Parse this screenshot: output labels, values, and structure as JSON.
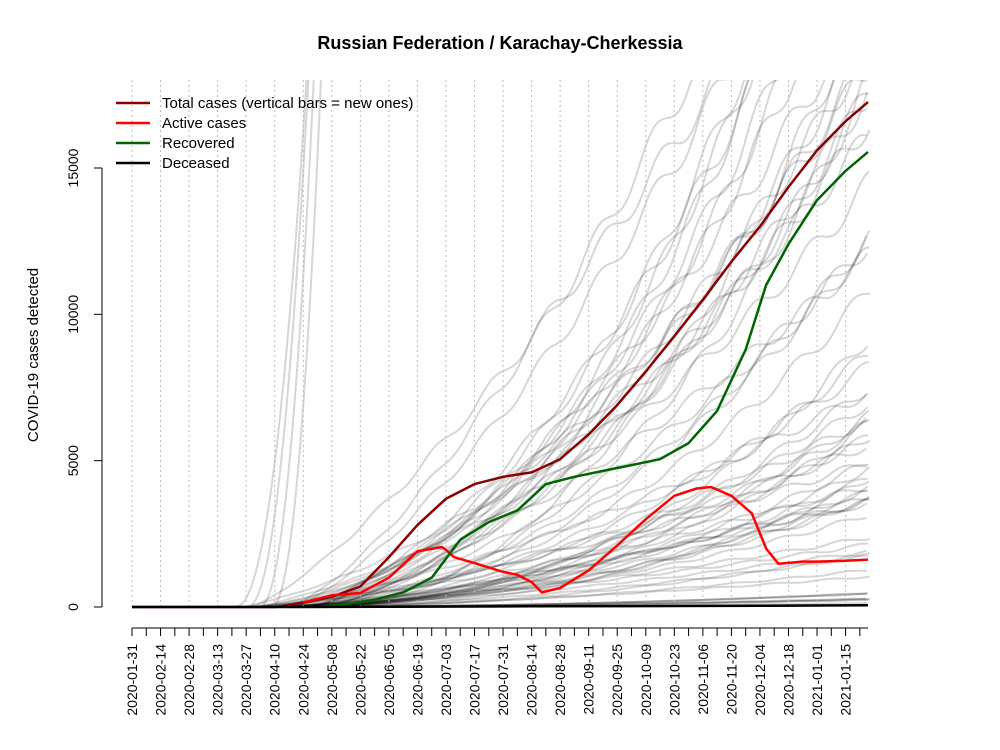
{
  "chart_data": {
    "type": "line",
    "title": "Russian Federation / Karachay-Cherkessia",
    "xlabel": "",
    "ylabel": "COVID-19 cases detected",
    "x_axis": {
      "type": "date",
      "range": [
        "2020-01-31",
        "2021-01-26"
      ],
      "tick_labels": [
        "2020-01-31",
        "2020-02-14",
        "2020-02-28",
        "2020-03-13",
        "2020-03-27",
        "2020-04-10",
        "2020-04-24",
        "2020-05-08",
        "2020-05-22",
        "2020-06-05",
        "2020-06-19",
        "2020-07-03",
        "2020-07-17",
        "2020-07-31",
        "2020-08-14",
        "2020-08-28",
        "2020-09-11",
        "2020-09-25",
        "2020-10-09",
        "2020-10-23",
        "2020-11-06",
        "2020-11-20",
        "2020-12-04",
        "2020-12-18",
        "2021-01-01",
        "2021-01-15"
      ]
    },
    "y_axis": {
      "range": [
        0,
        18000
      ],
      "ticks": [
        0,
        5000,
        10000,
        15000
      ]
    },
    "grid": "vertical dotted",
    "legend_position": "top-left",
    "series": [
      {
        "name": "Total cases (vertical bars = new ones)",
        "color": "#8b0000",
        "points": [
          [
            "2020-01-31",
            0
          ],
          [
            "2020-04-10",
            0
          ],
          [
            "2020-04-24",
            150
          ],
          [
            "2020-05-08",
            350
          ],
          [
            "2020-05-22",
            700
          ],
          [
            "2020-06-05",
            1700
          ],
          [
            "2020-06-19",
            2800
          ],
          [
            "2020-07-03",
            3700
          ],
          [
            "2020-07-17",
            4200
          ],
          [
            "2020-07-31",
            4450
          ],
          [
            "2020-08-14",
            4600
          ],
          [
            "2020-08-28",
            5050
          ],
          [
            "2020-09-11",
            5900
          ],
          [
            "2020-09-25",
            6900
          ],
          [
            "2020-10-09",
            8050
          ],
          [
            "2020-10-23",
            9250
          ],
          [
            "2020-11-06",
            10500
          ],
          [
            "2020-11-20",
            11800
          ],
          [
            "2020-12-04",
            13000
          ],
          [
            "2020-12-18",
            14350
          ],
          [
            "2021-01-01",
            15600
          ],
          [
            "2021-01-15",
            16600
          ],
          [
            "2021-01-26",
            17250
          ]
        ]
      },
      {
        "name": "Active cases",
        "color": "#ff0000",
        "points": [
          [
            "2020-04-24",
            150
          ],
          [
            "2020-05-08",
            400
          ],
          [
            "2020-05-22",
            480
          ],
          [
            "2020-06-05",
            1000
          ],
          [
            "2020-06-19",
            1900
          ],
          [
            "2020-07-01",
            2050
          ],
          [
            "2020-07-03",
            1950
          ],
          [
            "2020-07-07",
            1700
          ],
          [
            "2020-07-17",
            1500
          ],
          [
            "2020-07-31",
            1200
          ],
          [
            "2020-08-07",
            1100
          ],
          [
            "2020-08-14",
            850
          ],
          [
            "2020-08-19",
            500
          ],
          [
            "2020-08-28",
            650
          ],
          [
            "2020-09-11",
            1250
          ],
          [
            "2020-09-25",
            2100
          ],
          [
            "2020-10-09",
            3000
          ],
          [
            "2020-10-23",
            3800
          ],
          [
            "2020-11-03",
            4050
          ],
          [
            "2020-11-10",
            4100
          ],
          [
            "2020-11-20",
            3800
          ],
          [
            "2020-11-30",
            3200
          ],
          [
            "2020-12-07",
            2000
          ],
          [
            "2020-12-13",
            1480
          ],
          [
            "2020-12-25",
            1550
          ],
          [
            "2021-01-01",
            1550
          ],
          [
            "2021-01-15",
            1580
          ],
          [
            "2021-01-26",
            1620
          ]
        ]
      },
      {
        "name": "Recovered",
        "color": "#006400",
        "points": [
          [
            "2020-05-01",
            0
          ],
          [
            "2020-05-15",
            100
          ],
          [
            "2020-05-29",
            250
          ],
          [
            "2020-06-12",
            500
          ],
          [
            "2020-06-26",
            1000
          ],
          [
            "2020-07-10",
            2300
          ],
          [
            "2020-07-24",
            2900
          ],
          [
            "2020-08-07",
            3300
          ],
          [
            "2020-08-21",
            4200
          ],
          [
            "2020-09-04",
            4450
          ],
          [
            "2020-09-18",
            4650
          ],
          [
            "2020-10-02",
            4850
          ],
          [
            "2020-10-16",
            5050
          ],
          [
            "2020-10-30",
            5600
          ],
          [
            "2020-11-13",
            6700
          ],
          [
            "2020-11-27",
            8800
          ],
          [
            "2020-12-07",
            11000
          ],
          [
            "2020-12-18",
            12400
          ],
          [
            "2021-01-01",
            13900
          ],
          [
            "2021-01-15",
            14900
          ],
          [
            "2021-01-26",
            15550
          ]
        ]
      },
      {
        "name": "Deceased",
        "color": "#000000",
        "points": [
          [
            "2020-01-31",
            0
          ],
          [
            "2020-04-24",
            0
          ],
          [
            "2020-06-05",
            10
          ],
          [
            "2020-08-14",
            25
          ],
          [
            "2020-10-23",
            35
          ],
          [
            "2020-12-04",
            45
          ],
          [
            "2021-01-26",
            60
          ]
        ]
      }
    ]
  }
}
